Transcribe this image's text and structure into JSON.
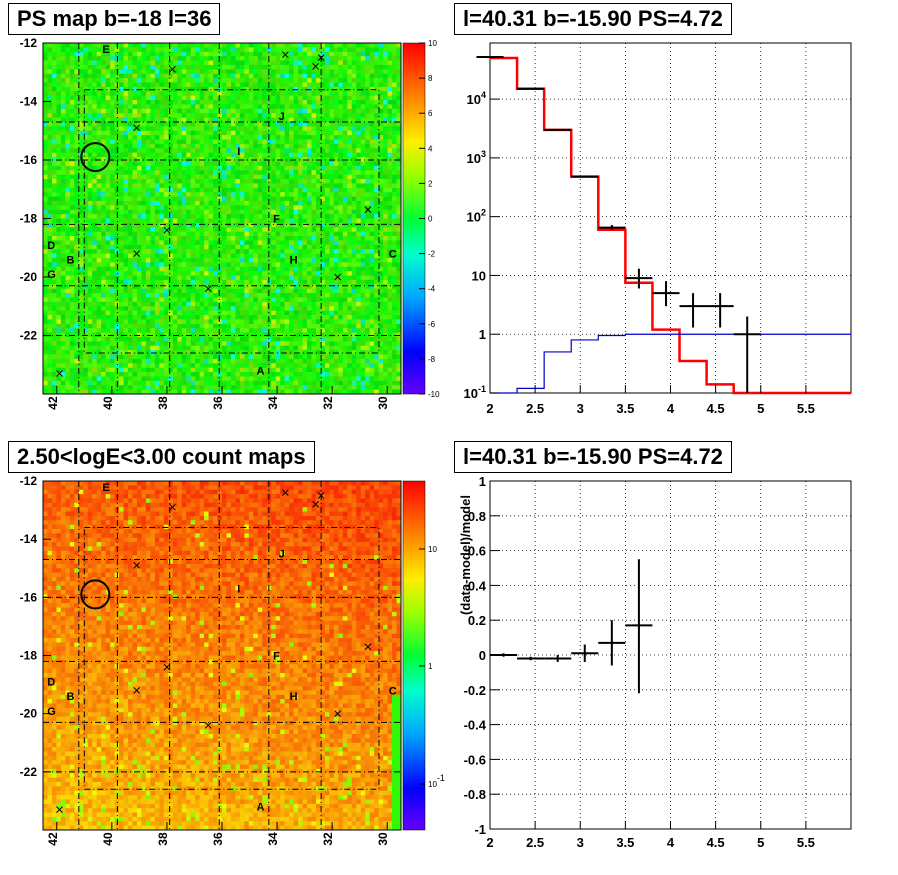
{
  "chart_data": [
    {
      "type": "heatmap",
      "title": "PS map b=-18 l=36",
      "xlabel": "",
      "ylabel": "",
      "x_ticks": [
        "42",
        "40",
        "38",
        "36",
        "34",
        "32",
        "30"
      ],
      "y_ticks": [
        "-12",
        "-14",
        "-16",
        "-18",
        "-20",
        "-22"
      ],
      "xlim": [
        42.5,
        29.5
      ],
      "ylim": [
        -24,
        -12
      ],
      "colorbar": {
        "min": -10,
        "max": 10,
        "ticks": [
          "10",
          "8",
          "6",
          "4",
          "2",
          "0",
          "-2",
          "-4",
          "-6",
          "-8",
          "-10"
        ]
      },
      "dominant_value": 0,
      "labels": [
        {
          "text": "E",
          "l": 40.2,
          "b": -12.2
        },
        {
          "text": "J",
          "l": 33.8,
          "b": -14.5
        },
        {
          "text": "I",
          "l": 35.3,
          "b": -15.7
        },
        {
          "text": "F",
          "l": 34.0,
          "b": -18.0
        },
        {
          "text": "D",
          "l": 42.2,
          "b": -18.9
        },
        {
          "text": "B",
          "l": 41.5,
          "b": -19.4
        },
        {
          "text": "H",
          "l": 33.4,
          "b": -19.4
        },
        {
          "text": "C",
          "l": 29.8,
          "b": -19.2
        },
        {
          "text": "G",
          "l": 42.2,
          "b": -19.9
        },
        {
          "text": "A",
          "l": 34.6,
          "b": -23.2
        }
      ],
      "markers": [
        {
          "l": 33.7,
          "b": -12.4
        },
        {
          "l": 32.4,
          "b": -12.5
        },
        {
          "l": 32.6,
          "b": -12.8
        },
        {
          "l": 37.8,
          "b": -12.9
        },
        {
          "l": 39.1,
          "b": -14.9
        },
        {
          "l": 30.7,
          "b": -17.7
        },
        {
          "l": 38.0,
          "b": -18.4
        },
        {
          "l": 39.1,
          "b": -19.2
        },
        {
          "l": 31.8,
          "b": -20.0
        },
        {
          "l": 36.5,
          "b": -20.4
        },
        {
          "l": 41.9,
          "b": -23.3
        }
      ],
      "circle": {
        "l": 40.6,
        "b": -15.9
      }
    },
    {
      "type": "line",
      "title": "l=40.31 b=-15.90 PS=4.72",
      "xlabel": "",
      "ylabel": "",
      "y_log": true,
      "xlim": [
        2,
        6
      ],
      "ylim": [
        0.1,
        90000
      ],
      "x_ticks": [
        "2",
        "2.5",
        "3",
        "3.5",
        "4",
        "4.5",
        "5",
        "5.5"
      ],
      "y_ticks": [
        "10^4",
        "10^3",
        "10^2",
        "10",
        "1",
        "10^-1"
      ],
      "series": [
        {
          "color": "#ff0000",
          "edges": [
            2.0,
            2.3,
            2.6,
            2.9,
            3.2,
            3.5,
            3.8,
            4.1,
            4.4,
            4.7,
            5.0,
            6.0
          ],
          "values": [
            50000,
            15000,
            3000,
            480,
            60,
            7.5,
            1.2,
            0.35,
            0.14,
            0.1,
            0.1
          ]
        },
        {
          "color": "#0000cc",
          "edges": [
            2.0,
            2.3,
            2.6,
            2.9,
            3.2,
            3.5,
            3.8,
            4.1,
            4.4,
            4.7,
            5.0,
            6.0
          ],
          "values": [
            0.1,
            0.12,
            0.5,
            0.8,
            0.95,
            1.0,
            1.0,
            1.0,
            1.0,
            1.0,
            1.0
          ]
        },
        {
          "color": "#000000",
          "kind": "errorbar",
          "points": [
            {
              "x": 2.0,
              "xerr": 0.15,
              "y": 52000,
              "ylo": 52000,
              "yhi": 52000
            },
            {
              "x": 2.45,
              "xerr": 0.15,
              "y": 15000,
              "ylo": 15000,
              "yhi": 15000
            },
            {
              "x": 2.75,
              "xerr": 0.15,
              "y": 3000,
              "ylo": 3000,
              "yhi": 3000
            },
            {
              "x": 3.05,
              "xerr": 0.15,
              "y": 480,
              "ylo": 480,
              "yhi": 480
            },
            {
              "x": 3.35,
              "xerr": 0.15,
              "y": 65,
              "ylo": 60,
              "yhi": 72
            },
            {
              "x": 3.65,
              "xerr": 0.15,
              "y": 9,
              "ylo": 6,
              "yhi": 13
            },
            {
              "x": 3.95,
              "xerr": 0.15,
              "y": 5,
              "ylo": 3,
              "yhi": 8
            },
            {
              "x": 4.25,
              "xerr": 0.15,
              "y": 3,
              "ylo": 1.3,
              "yhi": 5
            },
            {
              "x": 4.55,
              "xerr": 0.15,
              "y": 3,
              "ylo": 1.3,
              "yhi": 5
            },
            {
              "x": 4.85,
              "xerr": 0.15,
              "y": 1,
              "ylo": 0.1,
              "yhi": 2
            }
          ]
        }
      ]
    },
    {
      "type": "heatmap",
      "title": "2.50<logE<3.00 count maps",
      "xlabel": "",
      "ylabel": "",
      "x_ticks": [
        "42",
        "40",
        "38",
        "36",
        "34",
        "32",
        "30"
      ],
      "y_ticks": [
        "-12",
        "-14",
        "-16",
        "-18",
        "-20",
        "-22"
      ],
      "xlim": [
        42.5,
        29.5
      ],
      "ylim": [
        -24,
        -12
      ],
      "colorbar": {
        "log": true,
        "ticks": [
          "10",
          "1",
          "10^-1"
        ]
      },
      "labels": [
        {
          "text": "E",
          "l": 40.2,
          "b": -12.2
        },
        {
          "text": "J",
          "l": 33.8,
          "b": -14.5
        },
        {
          "text": "I",
          "l": 35.3,
          "b": -15.7
        },
        {
          "text": "F",
          "l": 34.0,
          "b": -18.0
        },
        {
          "text": "D",
          "l": 42.2,
          "b": -18.9
        },
        {
          "text": "B",
          "l": 41.5,
          "b": -19.4
        },
        {
          "text": "H",
          "l": 33.4,
          "b": -19.4
        },
        {
          "text": "C",
          "l": 29.8,
          "b": -19.2
        },
        {
          "text": "G",
          "l": 42.2,
          "b": -19.9
        },
        {
          "text": "A",
          "l": 34.6,
          "b": -23.2
        }
      ],
      "markers": [
        {
          "l": 33.7,
          "b": -12.4
        },
        {
          "l": 32.4,
          "b": -12.5
        },
        {
          "l": 32.6,
          "b": -12.8
        },
        {
          "l": 37.8,
          "b": -12.9
        },
        {
          "l": 39.1,
          "b": -14.9
        },
        {
          "l": 30.7,
          "b": -17.7
        },
        {
          "l": 38.0,
          "b": -18.4
        },
        {
          "l": 39.1,
          "b": -19.2
        },
        {
          "l": 31.8,
          "b": -20.0
        },
        {
          "l": 36.5,
          "b": -20.4
        },
        {
          "l": 41.9,
          "b": -23.3
        }
      ],
      "circle": {
        "l": 40.6,
        "b": -15.9
      }
    },
    {
      "type": "scatter",
      "title": "l=40.31 b=-15.90 PS=4.72",
      "xlabel": "",
      "ylabel": "(data-model)/model",
      "xlim": [
        2,
        6
      ],
      "ylim": [
        -1,
        1
      ],
      "x_ticks": [
        "2",
        "2.5",
        "3",
        "3.5",
        "4",
        "4.5",
        "5",
        "5.5"
      ],
      "y_ticks": [
        "1",
        "0.8",
        "0.6",
        "0.4",
        "0.2",
        "0",
        "-0.2",
        "-0.4",
        "-0.6",
        "-0.8",
        "-1"
      ],
      "points": [
        {
          "x": 2.15,
          "xerr": 0.15,
          "y": 0.0,
          "ylo": -0.01,
          "yhi": 0.01
        },
        {
          "x": 2.45,
          "xerr": 0.15,
          "y": -0.02,
          "ylo": -0.03,
          "yhi": -0.01
        },
        {
          "x": 2.75,
          "xerr": 0.15,
          "y": -0.02,
          "ylo": -0.04,
          "yhi": 0.0
        },
        {
          "x": 3.05,
          "xerr": 0.15,
          "y": 0.01,
          "ylo": -0.04,
          "yhi": 0.06
        },
        {
          "x": 3.35,
          "xerr": 0.15,
          "y": 0.07,
          "ylo": -0.06,
          "yhi": 0.2
        },
        {
          "x": 3.65,
          "xerr": 0.15,
          "y": 0.17,
          "ylo": -0.22,
          "yhi": 0.55
        }
      ]
    }
  ]
}
